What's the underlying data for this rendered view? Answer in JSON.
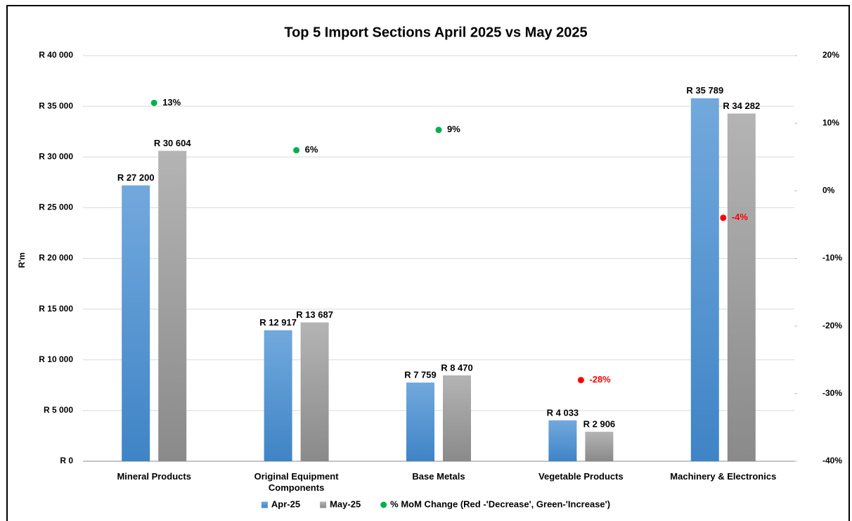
{
  "chart_data": {
    "type": "bar",
    "title": "Top 5 Import Sections April 2025 vs May 2025",
    "ylabel": "R'm",
    "categories": [
      "Mineral Products",
      "Original Equipment Components",
      "Base Metals",
      "Vegetable Products",
      "Machinery & Electronics"
    ],
    "series": [
      {
        "name": "Apr-25",
        "color": "#5b9bd5",
        "values": [
          27200,
          12917,
          7759,
          4033,
          35789
        ],
        "value_labels": [
          "R 27 200",
          "R 12 917",
          "R 7 759",
          "R 4 033",
          "R 35 789"
        ]
      },
      {
        "name": "May-25",
        "color": "#a5a5a5",
        "values": [
          30604,
          13687,
          8470,
          2906,
          34282
        ],
        "value_labels": [
          "R 30 604",
          "R 13 687",
          "R 8 470",
          "R 2 906",
          "R 34 282"
        ]
      },
      {
        "name": "% MoM Change (Red -'Decrease', Green-'Increase')",
        "type": "scatter",
        "axis": "y2",
        "color": "#00b050",
        "values": [
          13,
          6,
          9,
          -28,
          -4
        ],
        "value_labels": [
          "13%",
          "6%",
          "9%",
          "-28%",
          "-4%"
        ],
        "colors": [
          "#00b050",
          "#00b050",
          "#00b050",
          "#ff0000",
          "#ff0000"
        ],
        "label_colors": [
          "#000000",
          "#000000",
          "#000000",
          "#ff0000",
          "#ff0000"
        ]
      }
    ],
    "ylim": [
      0,
      40000
    ],
    "yticks": [
      {
        "value": 0,
        "label": "R 0"
      },
      {
        "value": 5000,
        "label": "R 5 000"
      },
      {
        "value": 10000,
        "label": "R 10 000"
      },
      {
        "value": 15000,
        "label": "R 15 000"
      },
      {
        "value": 20000,
        "label": "R 20 000"
      },
      {
        "value": 25000,
        "label": "R 25 000"
      },
      {
        "value": 30000,
        "label": "R 30 000"
      },
      {
        "value": 35000,
        "label": "R 35 000"
      },
      {
        "value": 40000,
        "label": "R 40 000"
      }
    ],
    "y2lim": [
      -40,
      20
    ],
    "y2ticks": [
      {
        "value": -40,
        "label": "-40%"
      },
      {
        "value": -30,
        "label": "-30%"
      },
      {
        "value": -20,
        "label": "-20%"
      },
      {
        "value": -10,
        "label": "-10%"
      },
      {
        "value": 0,
        "label": "0%"
      },
      {
        "value": 10,
        "label": "10%"
      },
      {
        "value": 20,
        "label": "20%"
      }
    ],
    "grid": true,
    "legend": "bottom"
  }
}
